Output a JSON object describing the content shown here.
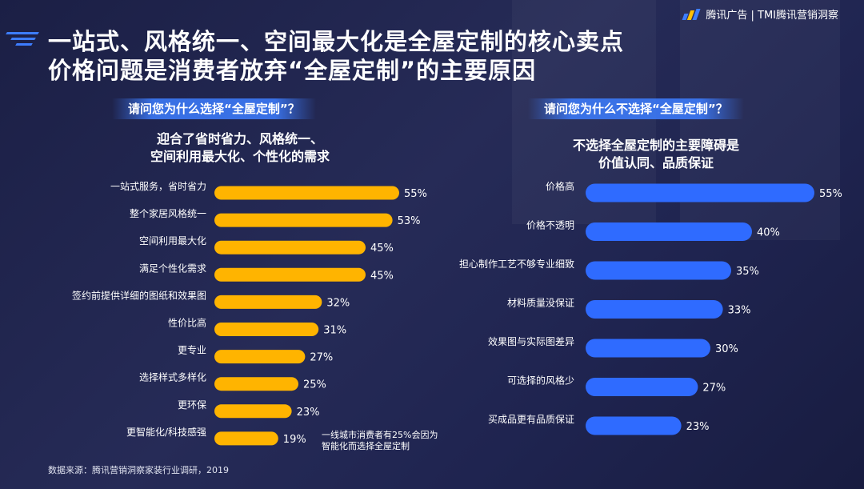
{
  "header": {
    "logo_text": "腾讯广告 | TMI腾讯营销洞察",
    "title_line1": "一站式、风格统一、空间最大化是全屋定制的核心卖点",
    "title_line2": "价格问题是消费者放弃“全屋定制”的主要原因"
  },
  "left_panel": {
    "question": "请问您为什么选择“全屋定制”？",
    "subhead_line1": "迎合了省时省力、风格统一、",
    "subhead_line2": "空间利用最大化、个性化的需求",
    "note_line1": "一线城市消费者有25%会因为",
    "note_line2": "智能化而选择全屋定制"
  },
  "right_panel": {
    "question": "请问您为什么不选择“全屋定制”？",
    "subhead_line1": "不选择全屋定制的主要障碍是",
    "subhead_line2": "价值认同、品质保证"
  },
  "footer": {
    "source": "数据来源：腾讯营销洞察家装行业调研，2019"
  },
  "colors": {
    "left_bar": "#ffb400",
    "right_bar": "#2f6bff",
    "accent": "#3d7dff"
  },
  "chart_data": [
    {
      "type": "bar",
      "orientation": "horizontal",
      "categories": [
        "一站式服务，省时省力",
        "整个家居风格统一",
        "空间利用最大化",
        "满足个性化需求",
        "签约前提供详细的图纸和效果图",
        "性价比高",
        "更专业",
        "选择样式多样化",
        "更环保",
        "更智能化/科技感强"
      ],
      "values": [
        55,
        53,
        45,
        45,
        32,
        31,
        27,
        25,
        23,
        19
      ],
      "value_suffix": "%",
      "color": "#ffb400"
    },
    {
      "type": "bar",
      "orientation": "horizontal",
      "categories": [
        "价格高",
        "价格不透明",
        "担心制作工艺不够专业细致",
        "材料质量没保证",
        "效果图与实际图差异",
        "可选择的风格少",
        "买成品更有品质保证"
      ],
      "values": [
        55,
        40,
        35,
        33,
        30,
        27,
        23
      ],
      "value_suffix": "%",
      "color": "#2f6bff"
    }
  ]
}
